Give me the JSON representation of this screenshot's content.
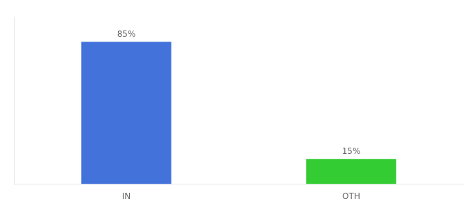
{
  "chart_data": {
    "type": "bar",
    "categories": [
      "IN",
      "OTH"
    ],
    "values": [
      85,
      15
    ],
    "value_labels": [
      "85%",
      "15%"
    ],
    "colors": [
      "#4472db",
      "#33cc33"
    ],
    "ylim": [
      0,
      100
    ],
    "data_labels": true,
    "tick_labels": "x",
    "grid": false
  }
}
